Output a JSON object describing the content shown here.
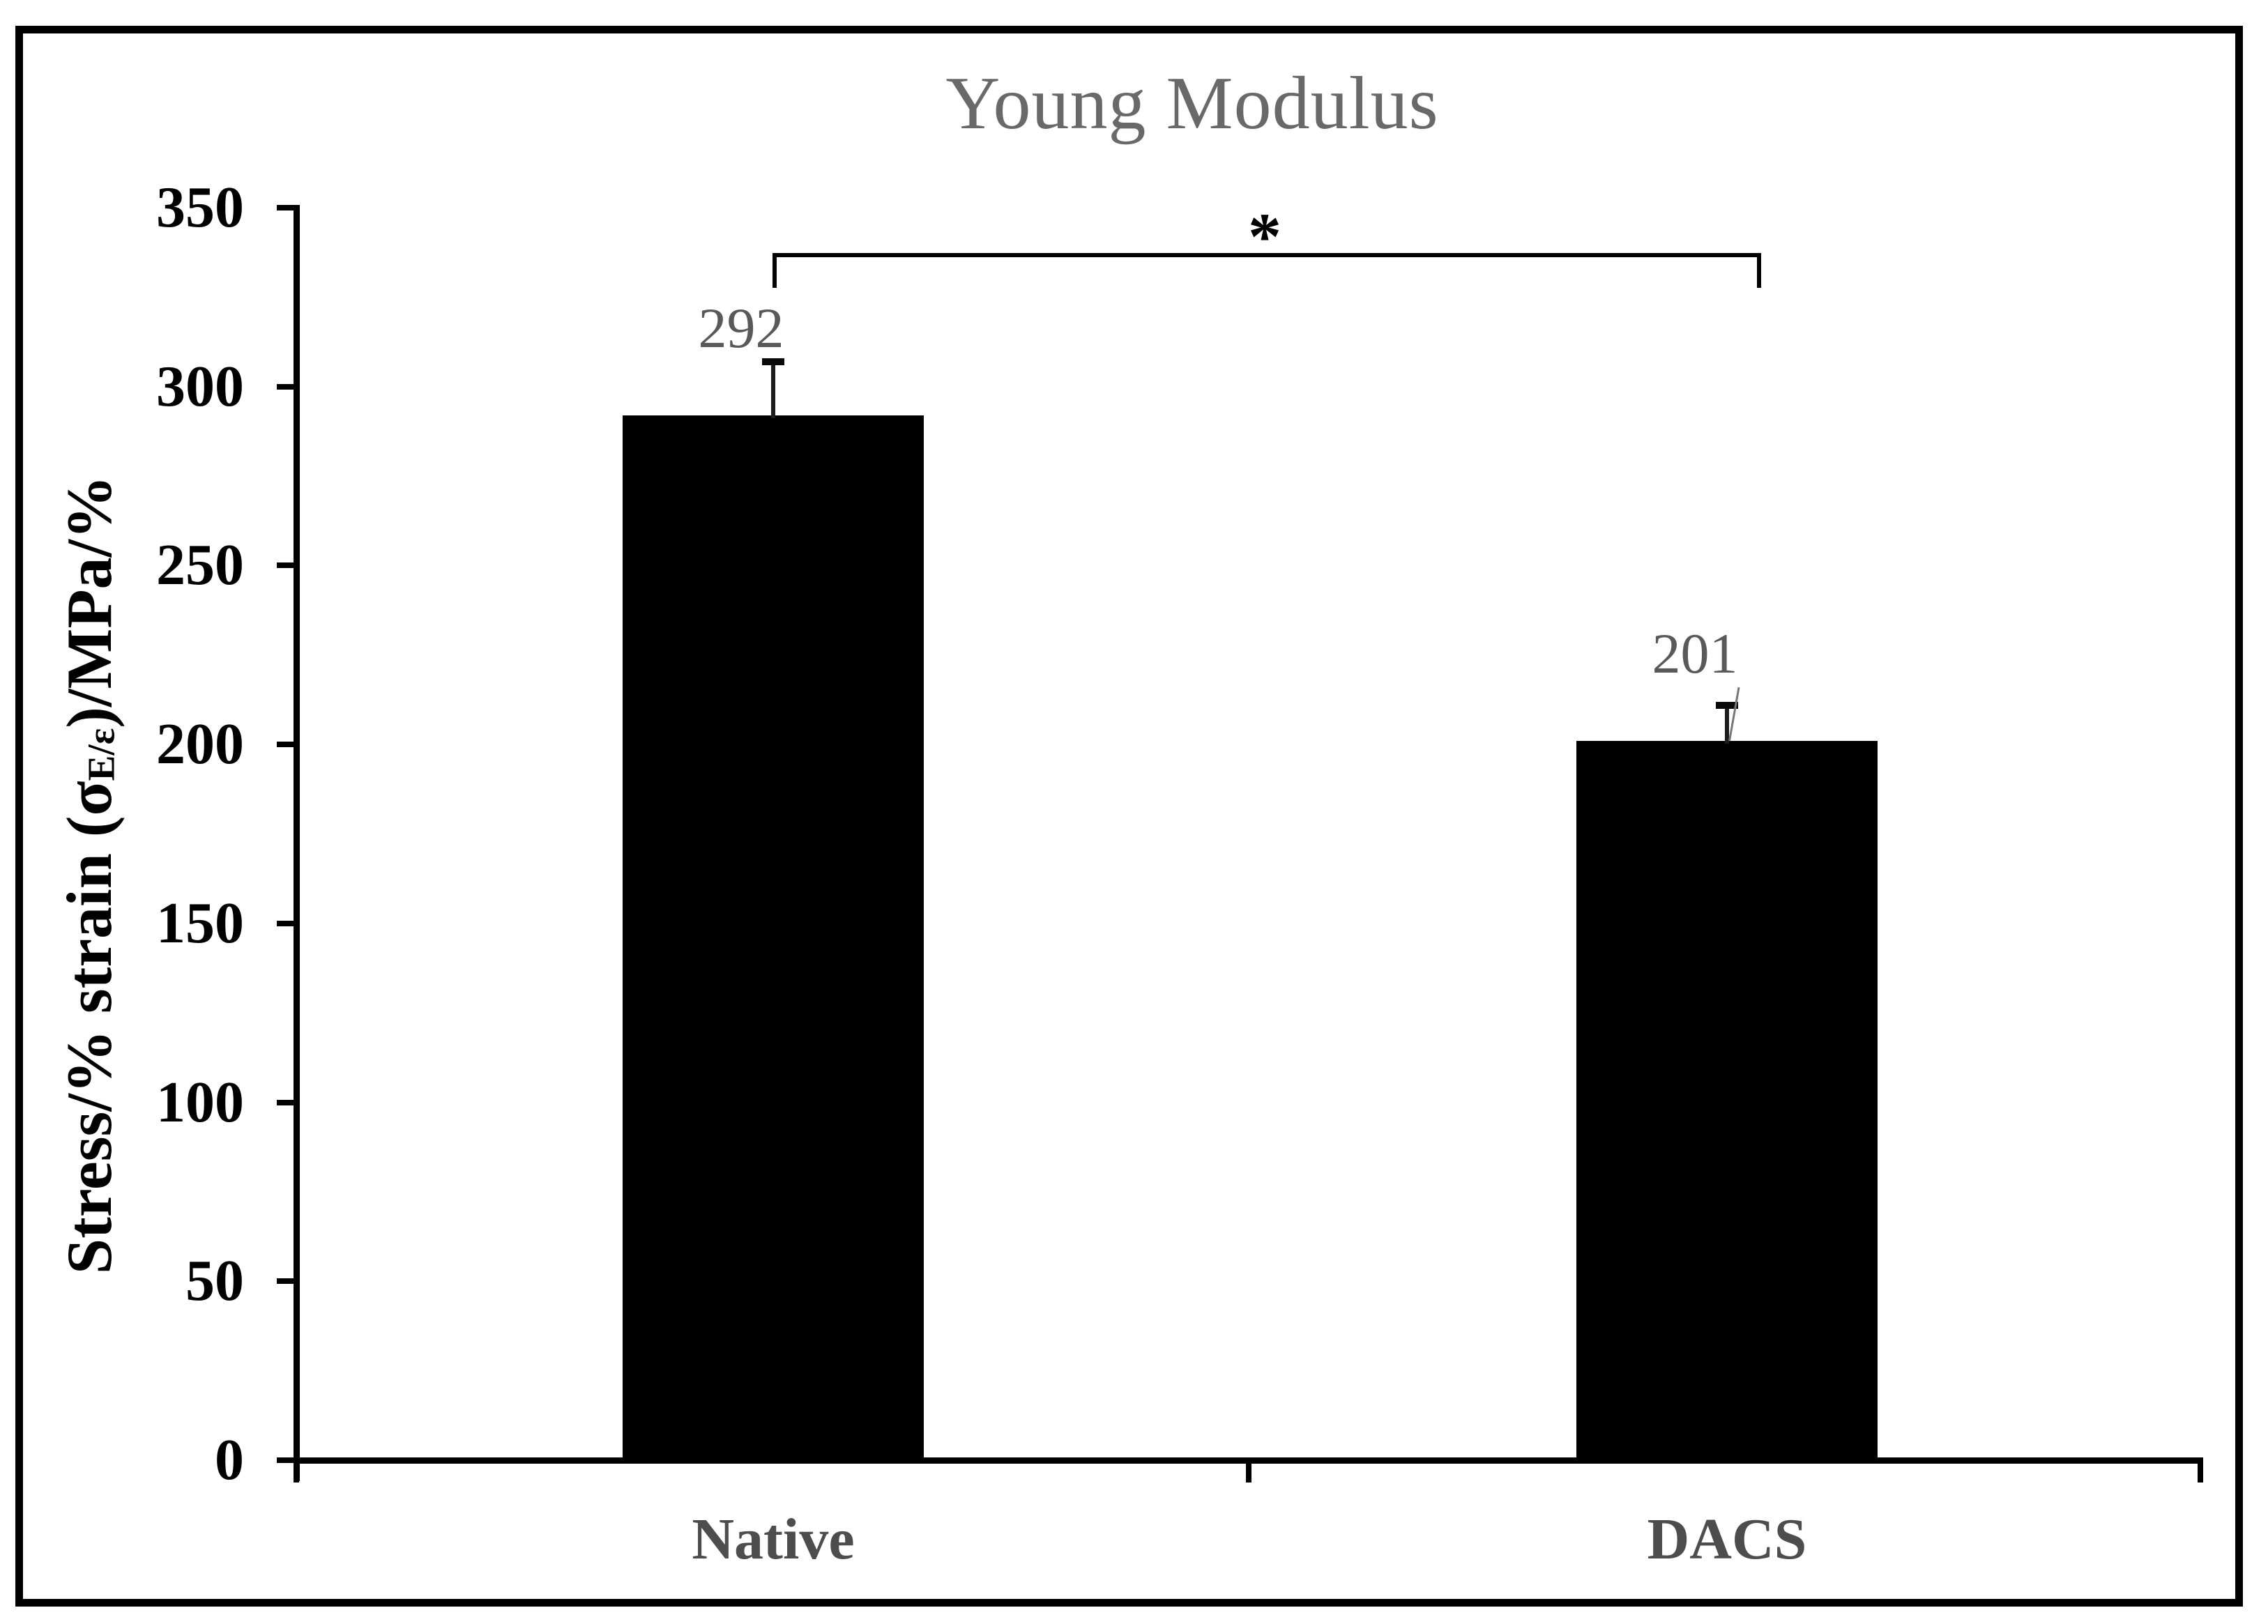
{
  "figure": {
    "title": "Young Modulus",
    "y_axis_label_parts": {
      "pre": "Stress/% strain (σ",
      "sub": "E/ε",
      "post": ")/MPa/%"
    },
    "significance_marker": "*"
  },
  "chart_data": {
    "type": "bar",
    "title": "Young Modulus",
    "categories": [
      "Native",
      "DACS"
    ],
    "values": [
      292,
      201
    ],
    "errors_plus": [
      15,
      10
    ],
    "data_labels": [
      "292",
      "201"
    ],
    "ylabel": "Stress/% strain (σE/ε)/MPa/%",
    "xlabel": "",
    "ylim": [
      0,
      350
    ],
    "yticks": [
      0,
      50,
      100,
      150,
      200,
      250,
      300,
      350
    ],
    "grid": false,
    "legend": false,
    "bar_color": "#000000",
    "annotations": [
      {
        "type": "significance-bracket",
        "text": "*",
        "between": [
          "Native",
          "DACS"
        ]
      }
    ]
  },
  "colors": {
    "background": "#ffffff",
    "frame": "#000000",
    "title": "#696969",
    "axis": "#000000",
    "bar": "#000000",
    "data_labels": "#595959",
    "category_labels": "#4d4d4d"
  }
}
